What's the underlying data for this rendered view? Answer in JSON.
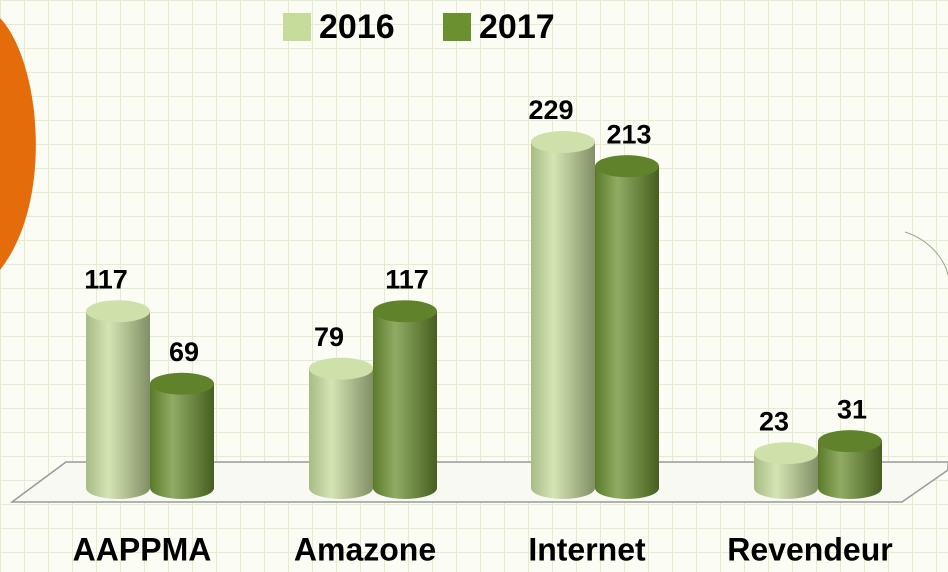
{
  "chart_data": {
    "type": "bar",
    "categories": [
      "AAPPMA",
      "Amazone",
      "Internet",
      "Revendeur"
    ],
    "series": [
      {
        "name": "2016",
        "color": "#c5dc9b",
        "values": [
          117,
          79,
          229,
          23
        ]
      },
      {
        "name": "2017",
        "color": "#6b9030",
        "values": [
          69,
          117,
          213,
          31
        ]
      }
    ],
    "legend": "top"
  }
}
